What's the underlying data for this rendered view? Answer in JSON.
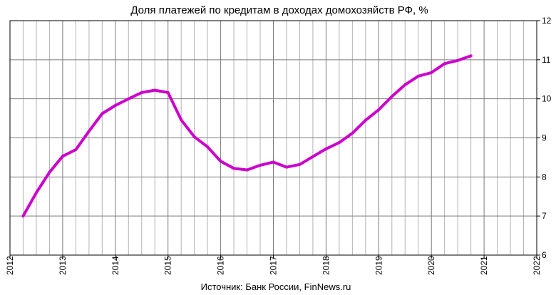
{
  "chart_data": {
    "type": "line",
    "title": "Доля платежей по кредитам в доходах домохозяйств РФ, %",
    "source": "Источник: Банк России, FinNews.ru",
    "xlabel": "",
    "ylabel": "",
    "xlim": [
      2012,
      2022
    ],
    "ylim": [
      6,
      12
    ],
    "x_ticks": [
      "2012",
      "2013",
      "2014",
      "2015",
      "2016",
      "2017",
      "2018",
      "2019",
      "2020",
      "2021",
      "2022"
    ],
    "y_ticks": [
      "6",
      "7",
      "8",
      "9",
      "10",
      "11",
      "12"
    ],
    "y_axis_side": "right",
    "grid": {
      "vertical_per_year": 4,
      "horizontal": true
    },
    "line_color": "#CC00CC",
    "series": [
      {
        "x": [
          2012.25,
          2012.5,
          2012.75,
          2013.0,
          2013.25,
          2013.5,
          2013.75,
          2014.0,
          2014.25,
          2014.5,
          2014.75,
          2015.0,
          2015.25,
          2015.5,
          2015.75,
          2016.0,
          2016.25,
          2016.5,
          2016.75,
          2017.0,
          2017.25,
          2017.5,
          2017.75,
          2018.0,
          2018.25,
          2018.5,
          2018.75,
          2019.0,
          2019.25,
          2019.5,
          2019.75,
          2020.0,
          2020.25,
          2020.5,
          2020.75
        ],
        "values": [
          7.0,
          7.6,
          8.12,
          8.53,
          8.7,
          9.17,
          9.62,
          9.83,
          10.0,
          10.16,
          10.22,
          10.16,
          9.46,
          9.03,
          8.77,
          8.4,
          8.22,
          8.18,
          8.3,
          8.38,
          8.25,
          8.32,
          8.52,
          8.72,
          8.88,
          9.12,
          9.45,
          9.72,
          10.06,
          10.36,
          10.58,
          10.67,
          10.9,
          10.98,
          11.1
        ]
      }
    ]
  }
}
